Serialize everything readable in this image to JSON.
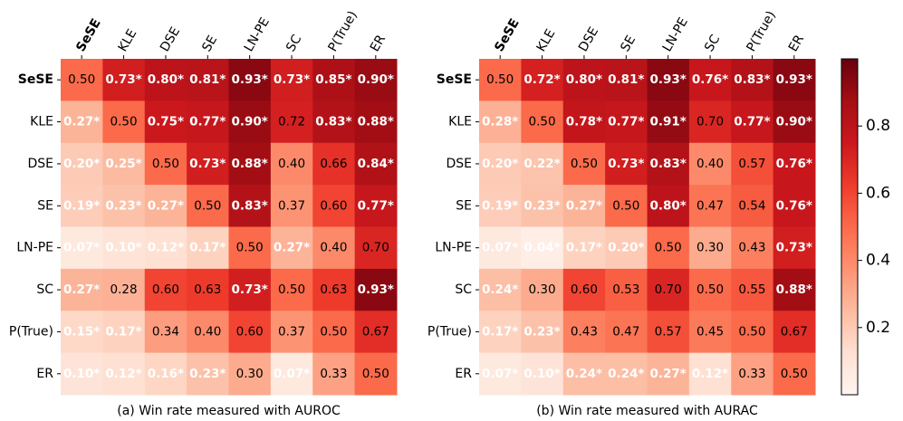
{
  "chart_data": [
    {
      "type": "heatmap",
      "caption": "(a) Win rate measured with AUROC",
      "row_labels": [
        "SeSE",
        "KLE",
        "DSE",
        "SE",
        "LN-PE",
        "SC",
        "P(True)",
        "ER"
      ],
      "col_labels": [
        "SeSE",
        "KLE",
        "DSE",
        "SE",
        "LN-PE",
        "SC",
        "P(True)",
        "ER"
      ],
      "bold_labels": [
        "SeSE"
      ],
      "values": [
        [
          0.5,
          0.73,
          0.8,
          0.81,
          0.93,
          0.73,
          0.85,
          0.9
        ],
        [
          0.27,
          0.5,
          0.75,
          0.77,
          0.9,
          0.72,
          0.83,
          0.88
        ],
        [
          0.2,
          0.25,
          0.5,
          0.73,
          0.88,
          0.4,
          0.66,
          0.84
        ],
        [
          0.19,
          0.23,
          0.27,
          0.5,
          0.83,
          0.37,
          0.6,
          0.77
        ],
        [
          0.07,
          0.1,
          0.12,
          0.17,
          0.5,
          0.27,
          0.4,
          0.7
        ],
        [
          0.27,
          0.28,
          0.6,
          0.63,
          0.73,
          0.5,
          0.63,
          0.93
        ],
        [
          0.15,
          0.17,
          0.34,
          0.4,
          0.6,
          0.37,
          0.5,
          0.67
        ],
        [
          0.1,
          0.12,
          0.16,
          0.23,
          0.3,
          0.07,
          0.33,
          0.5
        ]
      ],
      "cell_labels": [
        [
          "0.50",
          "0.73*",
          "0.80*",
          "0.81*",
          "0.93*",
          "0.73*",
          "0.85*",
          "0.90*"
        ],
        [
          "0.27*",
          "0.50",
          "0.75*",
          "0.77*",
          "0.90*",
          "0.72",
          "0.83*",
          "0.88*"
        ],
        [
          "0.20*",
          "0.25*",
          "0.50",
          "0.73*",
          "0.88*",
          "0.40",
          "0.66",
          "0.84*"
        ],
        [
          "0.19*",
          "0.23*",
          "0.27*",
          "0.50",
          "0.83*",
          "0.37",
          "0.60",
          "0.77*"
        ],
        [
          "0.07*",
          "0.10*",
          "0.12*",
          "0.17*",
          "0.50",
          "0.27*",
          "0.40",
          "0.70"
        ],
        [
          "0.27*",
          "0.28",
          "0.60",
          "0.63",
          "0.73*",
          "0.50",
          "0.63",
          "0.93*"
        ],
        [
          "0.15*",
          "0.17*",
          "0.34",
          "0.40",
          "0.60",
          "0.37",
          "0.50",
          "0.67"
        ],
        [
          "0.10*",
          "0.12*",
          "0.16*",
          "0.23*",
          "0.30",
          "0.07*",
          "0.33",
          "0.50"
        ]
      ]
    },
    {
      "type": "heatmap",
      "caption": "(b) Win rate measured with AURAC",
      "row_labels": [
        "SeSE",
        "KLE",
        "DSE",
        "SE",
        "LN-PE",
        "SC",
        "P(True)",
        "ER"
      ],
      "col_labels": [
        "SeSE",
        "KLE",
        "DSE",
        "SE",
        "LN-PE",
        "SC",
        "P(True)",
        "ER"
      ],
      "bold_labels": [
        "SeSE"
      ],
      "values": [
        [
          0.5,
          0.72,
          0.8,
          0.81,
          0.93,
          0.76,
          0.83,
          0.93
        ],
        [
          0.28,
          0.5,
          0.78,
          0.77,
          0.91,
          0.7,
          0.77,
          0.9
        ],
        [
          0.2,
          0.22,
          0.5,
          0.73,
          0.83,
          0.4,
          0.57,
          0.76
        ],
        [
          0.19,
          0.23,
          0.27,
          0.5,
          0.8,
          0.47,
          0.54,
          0.76
        ],
        [
          0.07,
          0.04,
          0.17,
          0.2,
          0.5,
          0.3,
          0.43,
          0.73
        ],
        [
          0.24,
          0.3,
          0.6,
          0.53,
          0.7,
          0.5,
          0.55,
          0.88
        ],
        [
          0.17,
          0.23,
          0.43,
          0.47,
          0.57,
          0.45,
          0.5,
          0.67
        ],
        [
          0.07,
          0.1,
          0.24,
          0.24,
          0.27,
          0.12,
          0.33,
          0.5
        ]
      ],
      "cell_labels": [
        [
          "0.50",
          "0.72*",
          "0.80*",
          "0.81*",
          "0.93*",
          "0.76*",
          "0.83*",
          "0.93*"
        ],
        [
          "0.28*",
          "0.50",
          "0.78*",
          "0.77*",
          "0.91*",
          "0.70",
          "0.77*",
          "0.90*"
        ],
        [
          "0.20*",
          "0.22*",
          "0.50",
          "0.73*",
          "0.83*",
          "0.40",
          "0.57",
          "0.76*"
        ],
        [
          "0.19*",
          "0.23*",
          "0.27*",
          "0.50",
          "0.80*",
          "0.47",
          "0.54",
          "0.76*"
        ],
        [
          "0.07*",
          "0.04*",
          "0.17*",
          "0.20*",
          "0.50",
          "0.30",
          "0.43",
          "0.73*"
        ],
        [
          "0.24*",
          "0.30",
          "0.60",
          "0.53",
          "0.70",
          "0.50",
          "0.55",
          "0.88*"
        ],
        [
          "0.17*",
          "0.23*",
          "0.43",
          "0.47",
          "0.57",
          "0.45",
          "0.50",
          "0.67"
        ],
        [
          "0.07*",
          "0.10*",
          "0.24*",
          "0.24*",
          "0.27*",
          "0.12*",
          "0.33",
          "0.50"
        ]
      ]
    }
  ],
  "colorbar": {
    "colormap": "Reds",
    "range": [
      0,
      1
    ],
    "ticks": [
      0.2,
      0.4,
      0.6,
      0.8
    ],
    "tick_labels": [
      "0.2",
      "0.4",
      "0.6",
      "0.8"
    ]
  },
  "colors": {
    "reds_stops": [
      "#fff5f0",
      "#fee0d2",
      "#fcbba1",
      "#fc9272",
      "#fb6a4a",
      "#ef3b2c",
      "#cb181d",
      "#a50f15",
      "#67000d"
    ]
  }
}
